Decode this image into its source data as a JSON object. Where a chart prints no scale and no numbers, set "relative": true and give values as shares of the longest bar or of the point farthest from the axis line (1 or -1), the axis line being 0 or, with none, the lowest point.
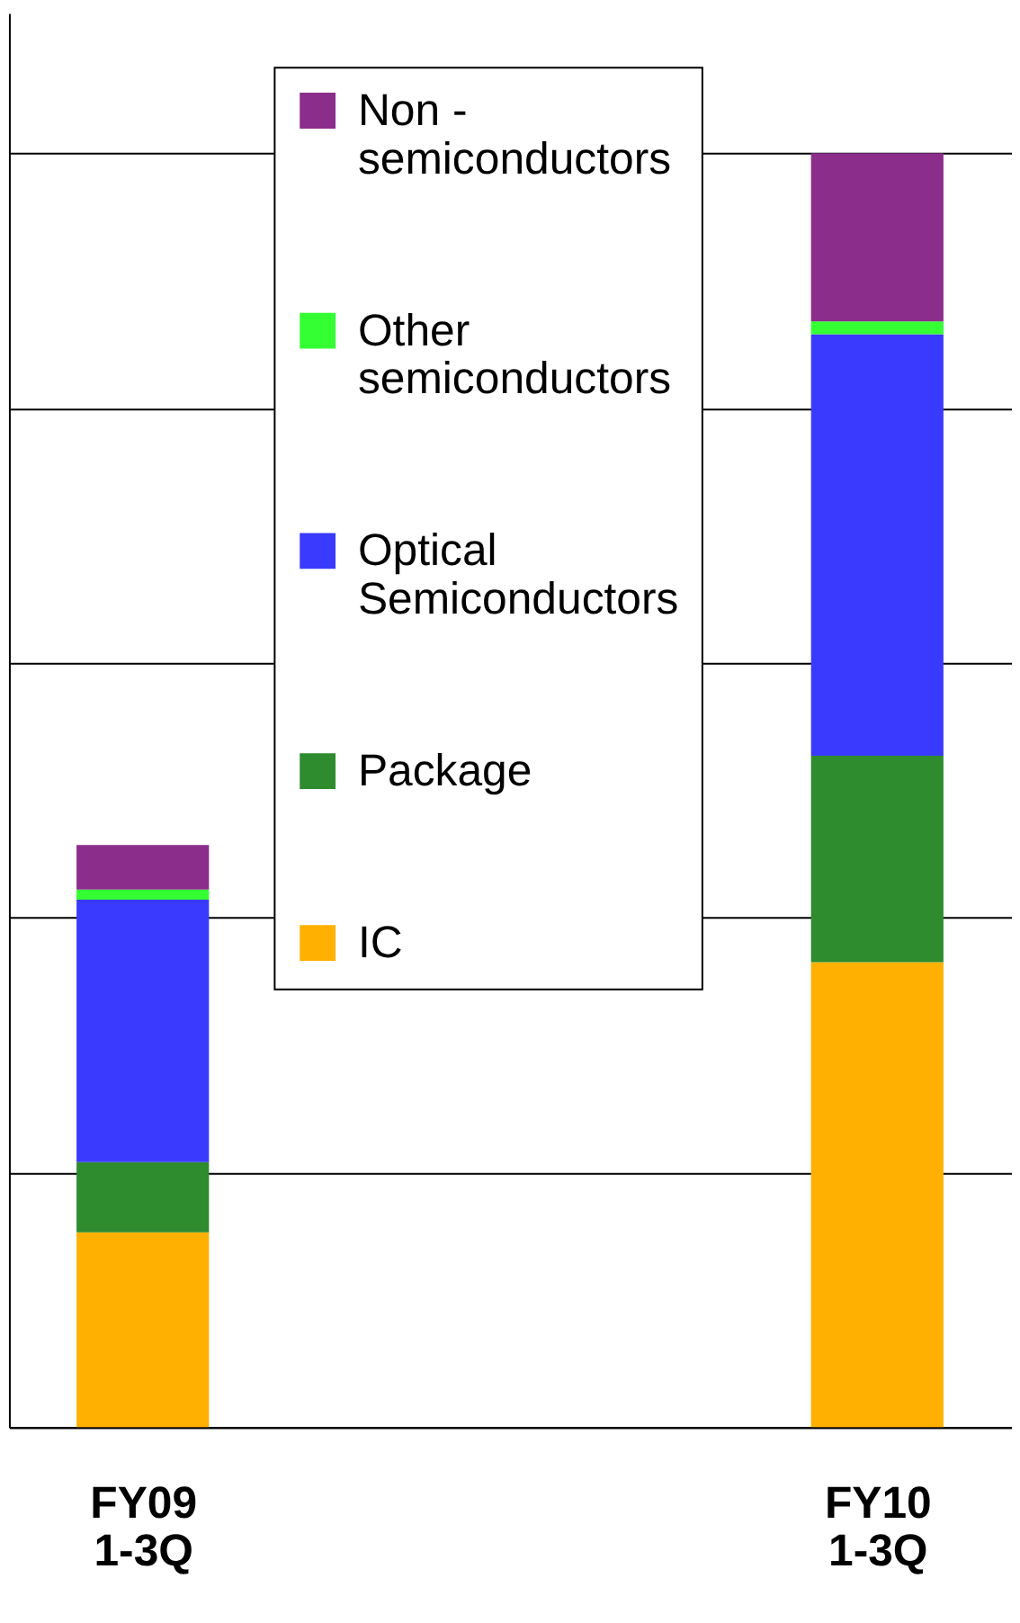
{
  "chart_data": {
    "type": "bar",
    "stacked": true,
    "relative": true,
    "grid": "y",
    "legend": "top",
    "tick_labels": "x",
    "categories": [
      "FY09 1-3Q",
      "FY10 1-3Q"
    ],
    "series": [
      {
        "name": "IC",
        "color": "#ffb000",
        "values": [
          0.153,
          0.365
        ]
      },
      {
        "name": "Package",
        "color": "#2e8b2e",
        "values": [
          0.055,
          0.162
        ]
      },
      {
        "name": "Optical Semiconductors",
        "color": "#3a3aff",
        "values": [
          0.206,
          0.331
        ]
      },
      {
        "name": "Other semiconductors",
        "color": "#33ff33",
        "values": [
          0.008,
          0.01
        ]
      },
      {
        "name": "Non - semiconductors",
        "color": "#8b2d8b",
        "values": [
          0.035,
          0.132
        ]
      }
    ]
  }
}
